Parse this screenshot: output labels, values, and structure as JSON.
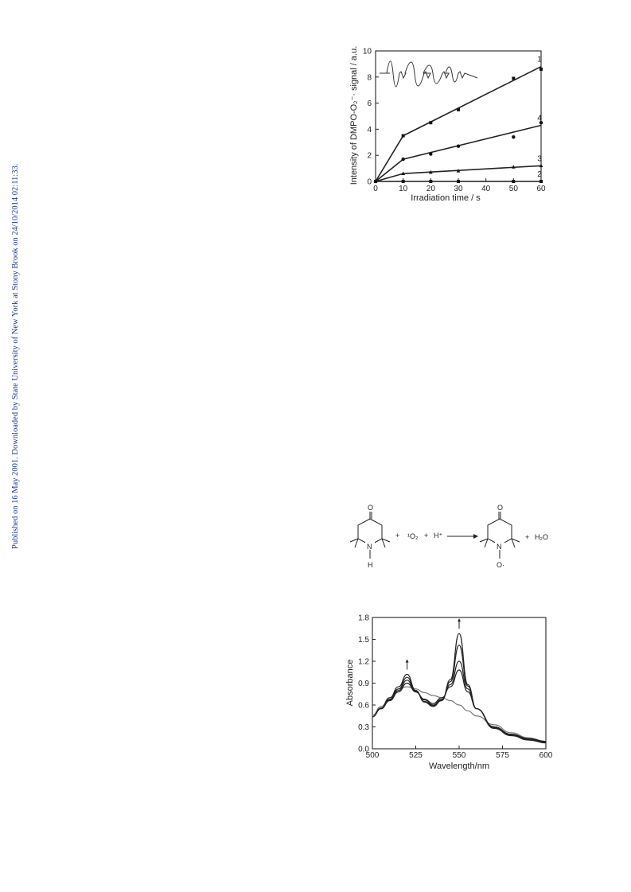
{
  "side_note": "Published on 16 May 2001. Downloaded by State University of New York at Stony Brook on 24/10/2014 02:11:33.",
  "scheme": {
    "reactant_top": "O",
    "reactant_bottom": "H",
    "reactant_n": "N",
    "plus1": "+",
    "singlet_o2": "¹O₂",
    "plus2": "+",
    "proton": "H⁺",
    "product_top": "O",
    "product_n": "N",
    "product_bottom": "O·",
    "plus3": "+",
    "water": "H₂O"
  },
  "chart_data": [
    {
      "type": "line",
      "xlabel": "Irradiation time / s",
      "ylabel": "Intensity of DMPO-O₂⁻· signal / a.u.",
      "xlim": [
        0,
        60
      ],
      "ylim": [
        0,
        10
      ],
      "xticks": [
        "0",
        "10",
        "20",
        "30",
        "40",
        "50",
        "60"
      ],
      "yticks": [
        "0",
        "2",
        "4",
        "6",
        "8",
        "10"
      ],
      "inset": "EPR spectrum",
      "series": [
        {
          "name": "1",
          "x": [
            0,
            10,
            20,
            30,
            50,
            60
          ],
          "points": [
            0,
            3.5,
            4.5,
            5.5,
            7.9,
            8.6
          ],
          "fit": [
            [
              0,
              0
            ],
            [
              10,
              3.5
            ],
            [
              60,
              8.8
            ]
          ],
          "marker": "square"
        },
        {
          "name": "4",
          "x": [
            0,
            10,
            20,
            30,
            50,
            60
          ],
          "points": [
            0,
            1.7,
            2.1,
            2.7,
            3.4,
            4.5
          ],
          "fit": [
            [
              0,
              0
            ],
            [
              10,
              1.7
            ],
            [
              60,
              4.3
            ]
          ],
          "marker": "circle"
        },
        {
          "name": "3",
          "x": [
            0,
            10,
            20,
            30,
            50,
            60
          ],
          "points": [
            0,
            0.6,
            0.7,
            0.8,
            1.1,
            1.2
          ],
          "fit": [
            [
              0,
              0
            ],
            [
              10,
              0.6
            ],
            [
              60,
              1.2
            ]
          ],
          "marker": "triangle"
        },
        {
          "name": "2",
          "x": [
            0,
            10,
            20,
            30,
            50,
            60
          ],
          "points": [
            0,
            0,
            0,
            0,
            0,
            0
          ],
          "fit": [
            [
              0,
              0
            ],
            [
              60,
              0
            ]
          ],
          "marker": "square"
        }
      ]
    },
    {
      "type": "line",
      "xlabel": "Wavelength/nm",
      "ylabel": "Absorbance",
      "xlim": [
        500,
        600
      ],
      "ylim": [
        0,
        1.8
      ],
      "xticks": [
        "500",
        "525",
        "550",
        "575",
        "600"
      ],
      "yticks": [
        "0.0",
        "0.3",
        "0.6",
        "0.9",
        "1.2",
        "1.5",
        "1.8"
      ],
      "arrows_at": [
        520,
        550
      ],
      "series": [
        {
          "x": [
            500,
            505,
            510,
            515,
            520,
            525,
            530,
            535,
            540,
            545,
            550,
            555,
            560,
            570,
            580,
            590,
            600
          ],
          "values": [
            0.46,
            0.58,
            0.7,
            0.82,
            0.85,
            0.82,
            0.77,
            0.73,
            0.7,
            0.66,
            0.6,
            0.52,
            0.45,
            0.33,
            0.22,
            0.15,
            0.1
          ]
        },
        {
          "x": [
            500,
            505,
            510,
            515,
            520,
            525,
            530,
            535,
            540,
            545,
            550,
            555,
            560,
            570,
            580,
            590,
            600
          ],
          "values": [
            0.44,
            0.55,
            0.66,
            0.78,
            0.9,
            0.78,
            0.68,
            0.62,
            0.7,
            0.85,
            1.08,
            0.78,
            0.55,
            0.3,
            0.2,
            0.14,
            0.1
          ]
        },
        {
          "x": [
            500,
            505,
            510,
            515,
            520,
            525,
            530,
            535,
            540,
            545,
            550,
            555,
            560,
            570,
            580,
            590,
            600
          ],
          "values": [
            0.44,
            0.55,
            0.67,
            0.8,
            0.94,
            0.78,
            0.67,
            0.6,
            0.68,
            0.88,
            1.2,
            0.82,
            0.55,
            0.3,
            0.2,
            0.14,
            0.1
          ]
        },
        {
          "x": [
            500,
            505,
            510,
            515,
            520,
            525,
            530,
            535,
            540,
            545,
            550,
            555,
            560,
            570,
            580,
            590,
            600
          ],
          "values": [
            0.44,
            0.55,
            0.68,
            0.82,
            0.98,
            0.79,
            0.65,
            0.59,
            0.67,
            0.92,
            1.42,
            0.86,
            0.55,
            0.29,
            0.19,
            0.13,
            0.09
          ]
        },
        {
          "x": [
            500,
            505,
            510,
            515,
            520,
            525,
            530,
            535,
            540,
            545,
            550,
            555,
            560,
            570,
            580,
            590,
            600
          ],
          "values": [
            0.44,
            0.56,
            0.7,
            0.85,
            1.02,
            0.8,
            0.64,
            0.58,
            0.66,
            0.95,
            1.58,
            0.88,
            0.55,
            0.28,
            0.18,
            0.12,
            0.08
          ]
        }
      ]
    }
  ]
}
